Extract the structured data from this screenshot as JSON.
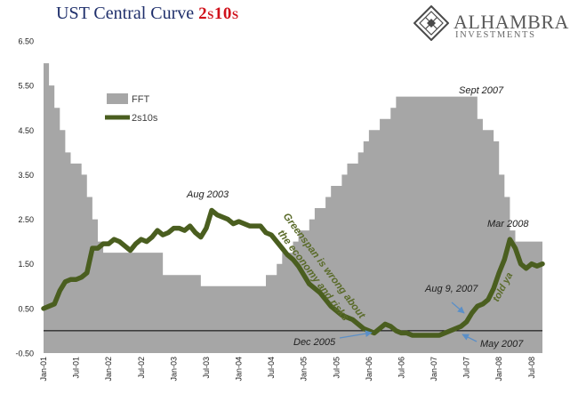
{
  "header": {
    "title": "UST Central Curve",
    "title_accent": "2s10s",
    "brand_name": "ALHAMBRA",
    "brand_sub": "INVESTMENTS",
    "logo_icon": "diamond-lattice-icon"
  },
  "colors": {
    "title": "#1f2f6b",
    "accent": "#d0101a",
    "fft_area": "#a6a6a6",
    "spread_line": "#4a5e1f",
    "annotation_text": "#5a6b2a",
    "arrow": "#5b8fc7"
  },
  "chart_data": {
    "type": "area",
    "x_start": "2001-01",
    "x_end": "2008-09",
    "ylim": [
      -0.5,
      6.5
    ],
    "yticks": [
      "6.50",
      "5.50",
      "4.50",
      "3.50",
      "2.50",
      "1.50",
      "0.50",
      "-0.50"
    ],
    "xtick_labels": [
      "Jan-01",
      "Jul-01",
      "Jan-02",
      "Jul-02",
      "Jan-03",
      "Jul-03",
      "Jan-04",
      "Jul-04",
      "Jan-05",
      "Jul-05",
      "Jan-06",
      "Jul-06",
      "Jan-07",
      "Jul-07",
      "Jan-08",
      "Jul-08"
    ],
    "zero_line": true,
    "grid": false,
    "legend": {
      "placement": "top-left",
      "entries": [
        "FFT",
        "2s10s"
      ]
    },
    "series": [
      {
        "name": "FFT",
        "kind": "step-area",
        "points": [
          [
            "2001-01",
            6.0
          ],
          [
            "2001-02",
            5.5
          ],
          [
            "2001-03",
            5.0
          ],
          [
            "2001-04",
            4.5
          ],
          [
            "2001-05",
            4.0
          ],
          [
            "2001-06",
            3.75
          ],
          [
            "2001-08",
            3.5
          ],
          [
            "2001-09",
            3.0
          ],
          [
            "2001-10",
            2.5
          ],
          [
            "2001-11",
            2.0
          ],
          [
            "2001-12",
            1.75
          ],
          [
            "2002-11",
            1.25
          ],
          [
            "2003-06",
            1.0
          ],
          [
            "2004-06",
            1.25
          ],
          [
            "2004-08",
            1.5
          ],
          [
            "2004-09",
            1.75
          ],
          [
            "2004-11",
            2.0
          ],
          [
            "2004-12",
            2.25
          ],
          [
            "2005-02",
            2.5
          ],
          [
            "2005-03",
            2.75
          ],
          [
            "2005-05",
            3.0
          ],
          [
            "2005-06",
            3.25
          ],
          [
            "2005-08",
            3.5
          ],
          [
            "2005-09",
            3.75
          ],
          [
            "2005-11",
            4.0
          ],
          [
            "2005-12",
            4.25
          ],
          [
            "2006-01",
            4.5
          ],
          [
            "2006-03",
            4.75
          ],
          [
            "2006-05",
            5.0
          ],
          [
            "2006-06",
            5.25
          ],
          [
            "2007-09",
            4.75
          ],
          [
            "2007-10",
            4.5
          ],
          [
            "2007-12",
            4.25
          ],
          [
            "2008-01",
            3.5
          ],
          [
            "2008-02",
            3.0
          ],
          [
            "2008-03",
            2.25
          ],
          [
            "2008-04",
            2.0
          ],
          [
            "2008-09",
            2.0
          ]
        ]
      },
      {
        "name": "2s10s",
        "kind": "line",
        "points": [
          [
            "2001-01",
            0.5
          ],
          [
            "2001-02",
            0.55
          ],
          [
            "2001-03",
            0.6
          ],
          [
            "2001-04",
            0.9
          ],
          [
            "2001-05",
            1.1
          ],
          [
            "2001-06",
            1.15
          ],
          [
            "2001-07",
            1.15
          ],
          [
            "2001-08",
            1.2
          ],
          [
            "2001-09",
            1.3
          ],
          [
            "2001-10",
            1.85
          ],
          [
            "2001-11",
            1.85
          ],
          [
            "2001-12",
            1.95
          ],
          [
            "2002-01",
            1.95
          ],
          [
            "2002-02",
            2.05
          ],
          [
            "2002-03",
            2.0
          ],
          [
            "2002-04",
            1.9
          ],
          [
            "2002-05",
            1.8
          ],
          [
            "2002-06",
            1.95
          ],
          [
            "2002-07",
            2.05
          ],
          [
            "2002-08",
            2.0
          ],
          [
            "2002-09",
            2.1
          ],
          [
            "2002-10",
            2.25
          ],
          [
            "2002-11",
            2.15
          ],
          [
            "2002-12",
            2.2
          ],
          [
            "2003-01",
            2.3
          ],
          [
            "2003-02",
            2.3
          ],
          [
            "2003-03",
            2.25
          ],
          [
            "2003-04",
            2.35
          ],
          [
            "2003-05",
            2.2
          ],
          [
            "2003-06",
            2.1
          ],
          [
            "2003-07",
            2.3
          ],
          [
            "2003-08",
            2.7
          ],
          [
            "2003-09",
            2.6
          ],
          [
            "2003-10",
            2.55
          ],
          [
            "2003-11",
            2.5
          ],
          [
            "2003-12",
            2.4
          ],
          [
            "2004-01",
            2.45
          ],
          [
            "2004-02",
            2.4
          ],
          [
            "2004-03",
            2.35
          ],
          [
            "2004-04",
            2.35
          ],
          [
            "2004-05",
            2.35
          ],
          [
            "2004-06",
            2.2
          ],
          [
            "2004-07",
            2.15
          ],
          [
            "2004-08",
            2.0
          ],
          [
            "2004-09",
            1.85
          ],
          [
            "2004-10",
            1.7
          ],
          [
            "2004-11",
            1.6
          ],
          [
            "2004-12",
            1.45
          ],
          [
            "2005-01",
            1.25
          ],
          [
            "2005-02",
            1.05
          ],
          [
            "2005-03",
            0.95
          ],
          [
            "2005-04",
            0.85
          ],
          [
            "2005-05",
            0.7
          ],
          [
            "2005-06",
            0.55
          ],
          [
            "2005-07",
            0.45
          ],
          [
            "2005-08",
            0.35
          ],
          [
            "2005-09",
            0.3
          ],
          [
            "2005-10",
            0.25
          ],
          [
            "2005-11",
            0.15
          ],
          [
            "2005-12",
            0.05
          ],
          [
            "2006-01",
            0.0
          ],
          [
            "2006-02",
            -0.05
          ],
          [
            "2006-03",
            0.05
          ],
          [
            "2006-04",
            0.15
          ],
          [
            "2006-05",
            0.1
          ],
          [
            "2006-06",
            0.0
          ],
          [
            "2006-07",
            -0.05
          ],
          [
            "2006-08",
            -0.05
          ],
          [
            "2006-09",
            -0.1
          ],
          [
            "2006-10",
            -0.1
          ],
          [
            "2006-11",
            -0.1
          ],
          [
            "2006-12",
            -0.1
          ],
          [
            "2007-01",
            -0.1
          ],
          [
            "2007-02",
            -0.1
          ],
          [
            "2007-03",
            -0.05
          ],
          [
            "2007-04",
            0.0
          ],
          [
            "2007-05",
            0.05
          ],
          [
            "2007-06",
            0.1
          ],
          [
            "2007-07",
            0.2
          ],
          [
            "2007-08",
            0.4
          ],
          [
            "2007-09",
            0.55
          ],
          [
            "2007-10",
            0.6
          ],
          [
            "2007-11",
            0.7
          ],
          [
            "2007-12",
            0.95
          ],
          [
            "2008-01",
            1.3
          ],
          [
            "2008-02",
            1.6
          ],
          [
            "2008-03",
            2.05
          ],
          [
            "2008-04",
            1.85
          ],
          [
            "2008-05",
            1.5
          ],
          [
            "2008-06",
            1.4
          ],
          [
            "2008-07",
            1.5
          ],
          [
            "2008-08",
            1.45
          ],
          [
            "2008-09",
            1.5
          ]
        ]
      }
    ],
    "annotations": [
      {
        "text": "Sept 2007",
        "x": "2007-08",
        "y": 5.4
      },
      {
        "text": "Aug 2003",
        "x": "2003-04",
        "y": 3.0
      },
      {
        "text": "Mar 2008",
        "x": "2007-12",
        "y": 2.2
      },
      {
        "text": "Aug 9, 2007",
        "x": "2006-10",
        "y": 0.85
      },
      {
        "text": "Dec 2005",
        "x": "2005-05",
        "y": -0.35
      },
      {
        "text": "May 2007",
        "x": "2007-08",
        "y": -0.42
      },
      {
        "text": "Greenspan is wrong about",
        "rotated": true
      },
      {
        "text": "the economy and risks",
        "rotated": true
      },
      {
        "text": "told ya",
        "rotated": true
      }
    ]
  }
}
